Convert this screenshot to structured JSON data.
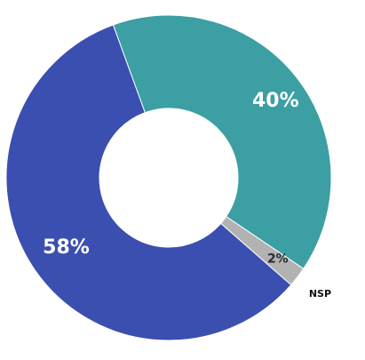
{
  "chart_data": {
    "type": "pie",
    "style": "donut",
    "slices": [
      {
        "label": "",
        "value": 40,
        "display": "40%",
        "color": "#3b9fa3"
      },
      {
        "label": "NSP",
        "value": 2,
        "display": "2%",
        "color": "#b2b2b2"
      },
      {
        "label": "",
        "value": 58,
        "display": "58%",
        "color": "#3b4fb0"
      }
    ],
    "legend": "none",
    "title": ""
  }
}
